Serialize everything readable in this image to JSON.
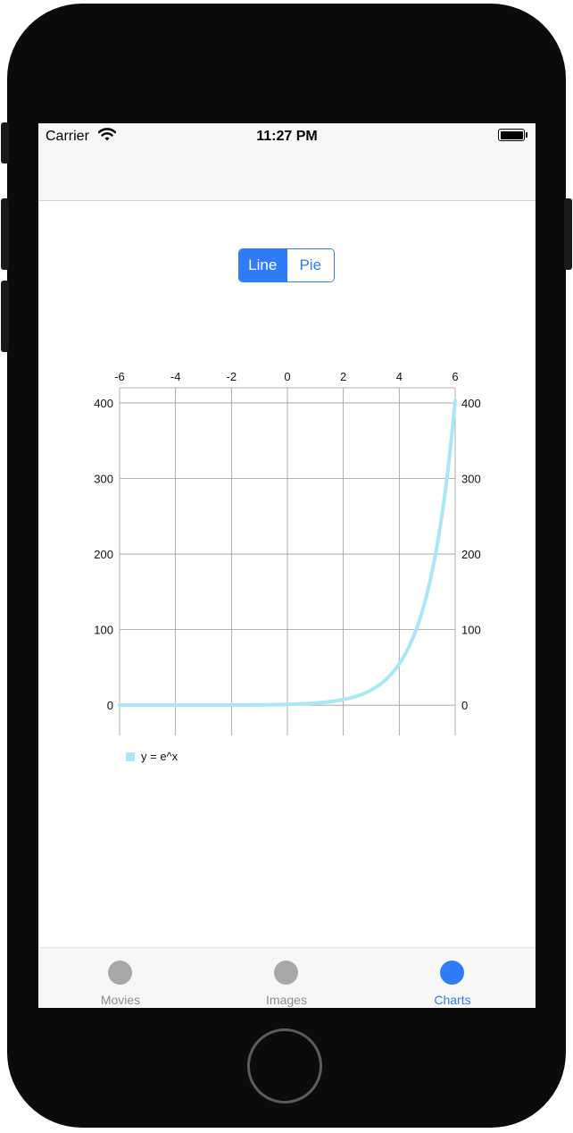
{
  "status_bar": {
    "carrier": "Carrier",
    "time": "11:27 PM"
  },
  "segmented_control": {
    "options": [
      "Line",
      "Pie"
    ],
    "selected": "Line"
  },
  "chart_data": {
    "type": "line",
    "function": "y = e^x",
    "x_range": [
      -6,
      6
    ],
    "y_range": [
      -40,
      420
    ],
    "xticks": [
      -6,
      -4,
      -2,
      0,
      2,
      4,
      6
    ],
    "yticks": [
      0,
      100,
      200,
      300,
      400
    ],
    "x_axis_position": "top",
    "y_axis_position": "both",
    "grid": true,
    "legend": "bottom-left",
    "series": [
      {
        "name": "y = e^x",
        "color": "#a8e6f8",
        "x": [
          -6,
          -5,
          -4,
          -3,
          -2,
          -1,
          0,
          1,
          2,
          3,
          3.5,
          4,
          4.5,
          5,
          5.25,
          5.5,
          5.75,
          6
        ],
        "y": [
          0.0025,
          0.0067,
          0.018,
          0.05,
          0.135,
          0.37,
          1,
          2.72,
          7.39,
          20.09,
          33.1,
          54.6,
          90.0,
          148.4,
          190.6,
          244.7,
          314.2,
          403.4
        ]
      }
    ]
  },
  "tab_bar": {
    "items": [
      {
        "label": "Movies",
        "selected": false
      },
      {
        "label": "Images",
        "selected": false
      },
      {
        "label": "Charts",
        "selected": true
      }
    ]
  },
  "colors": {
    "accent": "#2f7cf6",
    "series": "#a8e6f8",
    "inactive_tab": "#a8a8a8"
  }
}
